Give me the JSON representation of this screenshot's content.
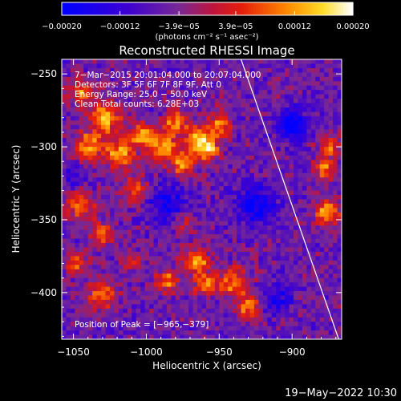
{
  "chart_data": {
    "type": "heatmap",
    "title": "Reconstructed RHESSI Image",
    "xlabel": "Heliocentric X (arcsec)",
    "ylabel": "Heliocentric Y (arcsec)",
    "xlim": [
      -1058,
      -866
    ],
    "ylim": [
      -432,
      -240
    ],
    "x_ticks": [
      -1050,
      -1000,
      -950,
      -900
    ],
    "x_tick_labels": [
      "−1050",
      "−1000",
      "−950",
      "−900"
    ],
    "y_ticks": [
      -250,
      -300,
      -350,
      -400
    ],
    "y_tick_labels": [
      "−250",
      "−300",
      "−350",
      "−400"
    ],
    "colorbar": {
      "range": [
        -0.0002,
        0.0002
      ],
      "ticks": [
        -0.0002,
        -0.00012,
        -3.9e-05,
        3.9e-05,
        0.00012,
        0.0002
      ],
      "tick_labels": [
        "−0.00020",
        "−0.00012",
        "−3.9e−05",
        "3.9e−05",
        "0.00012",
        "0.00020"
      ],
      "unit_label": "(photons cm⁻² s⁻¹ asec⁻²)"
    },
    "info_lines": [
      "7−Mar−2015 20:01:04.000 to 20:07:04.000",
      "Detectors: 3F 5F 6F 7F 8F 9F, Att 0",
      "Energy Range: 25.0 − 50.0 keV",
      "Clean    Total counts: 6.28E+03"
    ],
    "peak_label": "Position of Peak = [−965,−379]",
    "peak_position": [
      -965,
      -379
    ],
    "limb_line": [
      [
        -935,
        -240
      ],
      [
        -868,
        -432
      ]
    ],
    "blobs": [
      {
        "x": -1045,
        "y": -262,
        "sigma": 6,
        "amp": 0.00016
      },
      {
        "x": -1028,
        "y": -280,
        "sigma": 8,
        "amp": 0.00018
      },
      {
        "x": -1040,
        "y": -300,
        "sigma": 7,
        "amp": 0.00017
      },
      {
        "x": -1018,
        "y": -305,
        "sigma": 7,
        "amp": 0.00019
      },
      {
        "x": -1003,
        "y": -292,
        "sigma": 6,
        "amp": 0.00017
      },
      {
        "x": -988,
        "y": -300,
        "sigma": 7,
        "amp": 0.00018
      },
      {
        "x": -980,
        "y": -283,
        "sigma": 6,
        "amp": 0.00015
      },
      {
        "x": -965,
        "y": -295,
        "sigma": 6,
        "amp": 0.00019
      },
      {
        "x": -958,
        "y": -302,
        "sigma": 5,
        "amp": 0.0002
      },
      {
        "x": -950,
        "y": -285,
        "sigma": 6,
        "amp": 0.00016
      },
      {
        "x": -975,
        "y": -312,
        "sigma": 6,
        "amp": 0.00016
      },
      {
        "x": -1008,
        "y": -330,
        "sigma": 6,
        "amp": 0.00014
      },
      {
        "x": -1045,
        "y": -340,
        "sigma": 7,
        "amp": 0.00015
      },
      {
        "x": -1030,
        "y": -360,
        "sigma": 6,
        "amp": 0.00014
      },
      {
        "x": -1048,
        "y": -380,
        "sigma": 6,
        "amp": 0.00012
      },
      {
        "x": -1030,
        "y": -402,
        "sigma": 7,
        "amp": 0.00015
      },
      {
        "x": -985,
        "y": -392,
        "sigma": 6,
        "amp": 0.00014
      },
      {
        "x": -965,
        "y": -379,
        "sigma": 6,
        "amp": 0.0002
      },
      {
        "x": -960,
        "y": -395,
        "sigma": 5,
        "amp": 0.00015
      },
      {
        "x": -940,
        "y": -393,
        "sigma": 7,
        "amp": 0.00017
      },
      {
        "x": -930,
        "y": -410,
        "sigma": 6,
        "amp": 0.00015
      },
      {
        "x": -1010,
        "y": -378,
        "sigma": 5,
        "amp": 0.0001
      },
      {
        "x": -975,
        "y": -352,
        "sigma": 5,
        "amp": 0.0001
      },
      {
        "x": -878,
        "y": -315,
        "sigma": 5,
        "amp": 0.00016
      },
      {
        "x": -876,
        "y": -345,
        "sigma": 6,
        "amp": 0.00019
      },
      {
        "x": -874,
        "y": -300,
        "sigma": 5,
        "amp": 0.00015
      },
      {
        "x": -900,
        "y": -285,
        "sigma": 7,
        "amp": -0.00016
      },
      {
        "x": -925,
        "y": -340,
        "sigma": 9,
        "amp": -0.00015
      },
      {
        "x": -985,
        "y": -340,
        "sigma": 9,
        "amp": -0.00012
      },
      {
        "x": -1050,
        "y": -320,
        "sigma": 5,
        "amp": -0.0001
      },
      {
        "x": -910,
        "y": -405,
        "sigma": 7,
        "amp": -0.0001
      }
    ]
  },
  "footer": {
    "timestamp": "19−May−2022 10:30"
  },
  "colors": {
    "background": "#000000",
    "foreground": "#ffffff"
  }
}
